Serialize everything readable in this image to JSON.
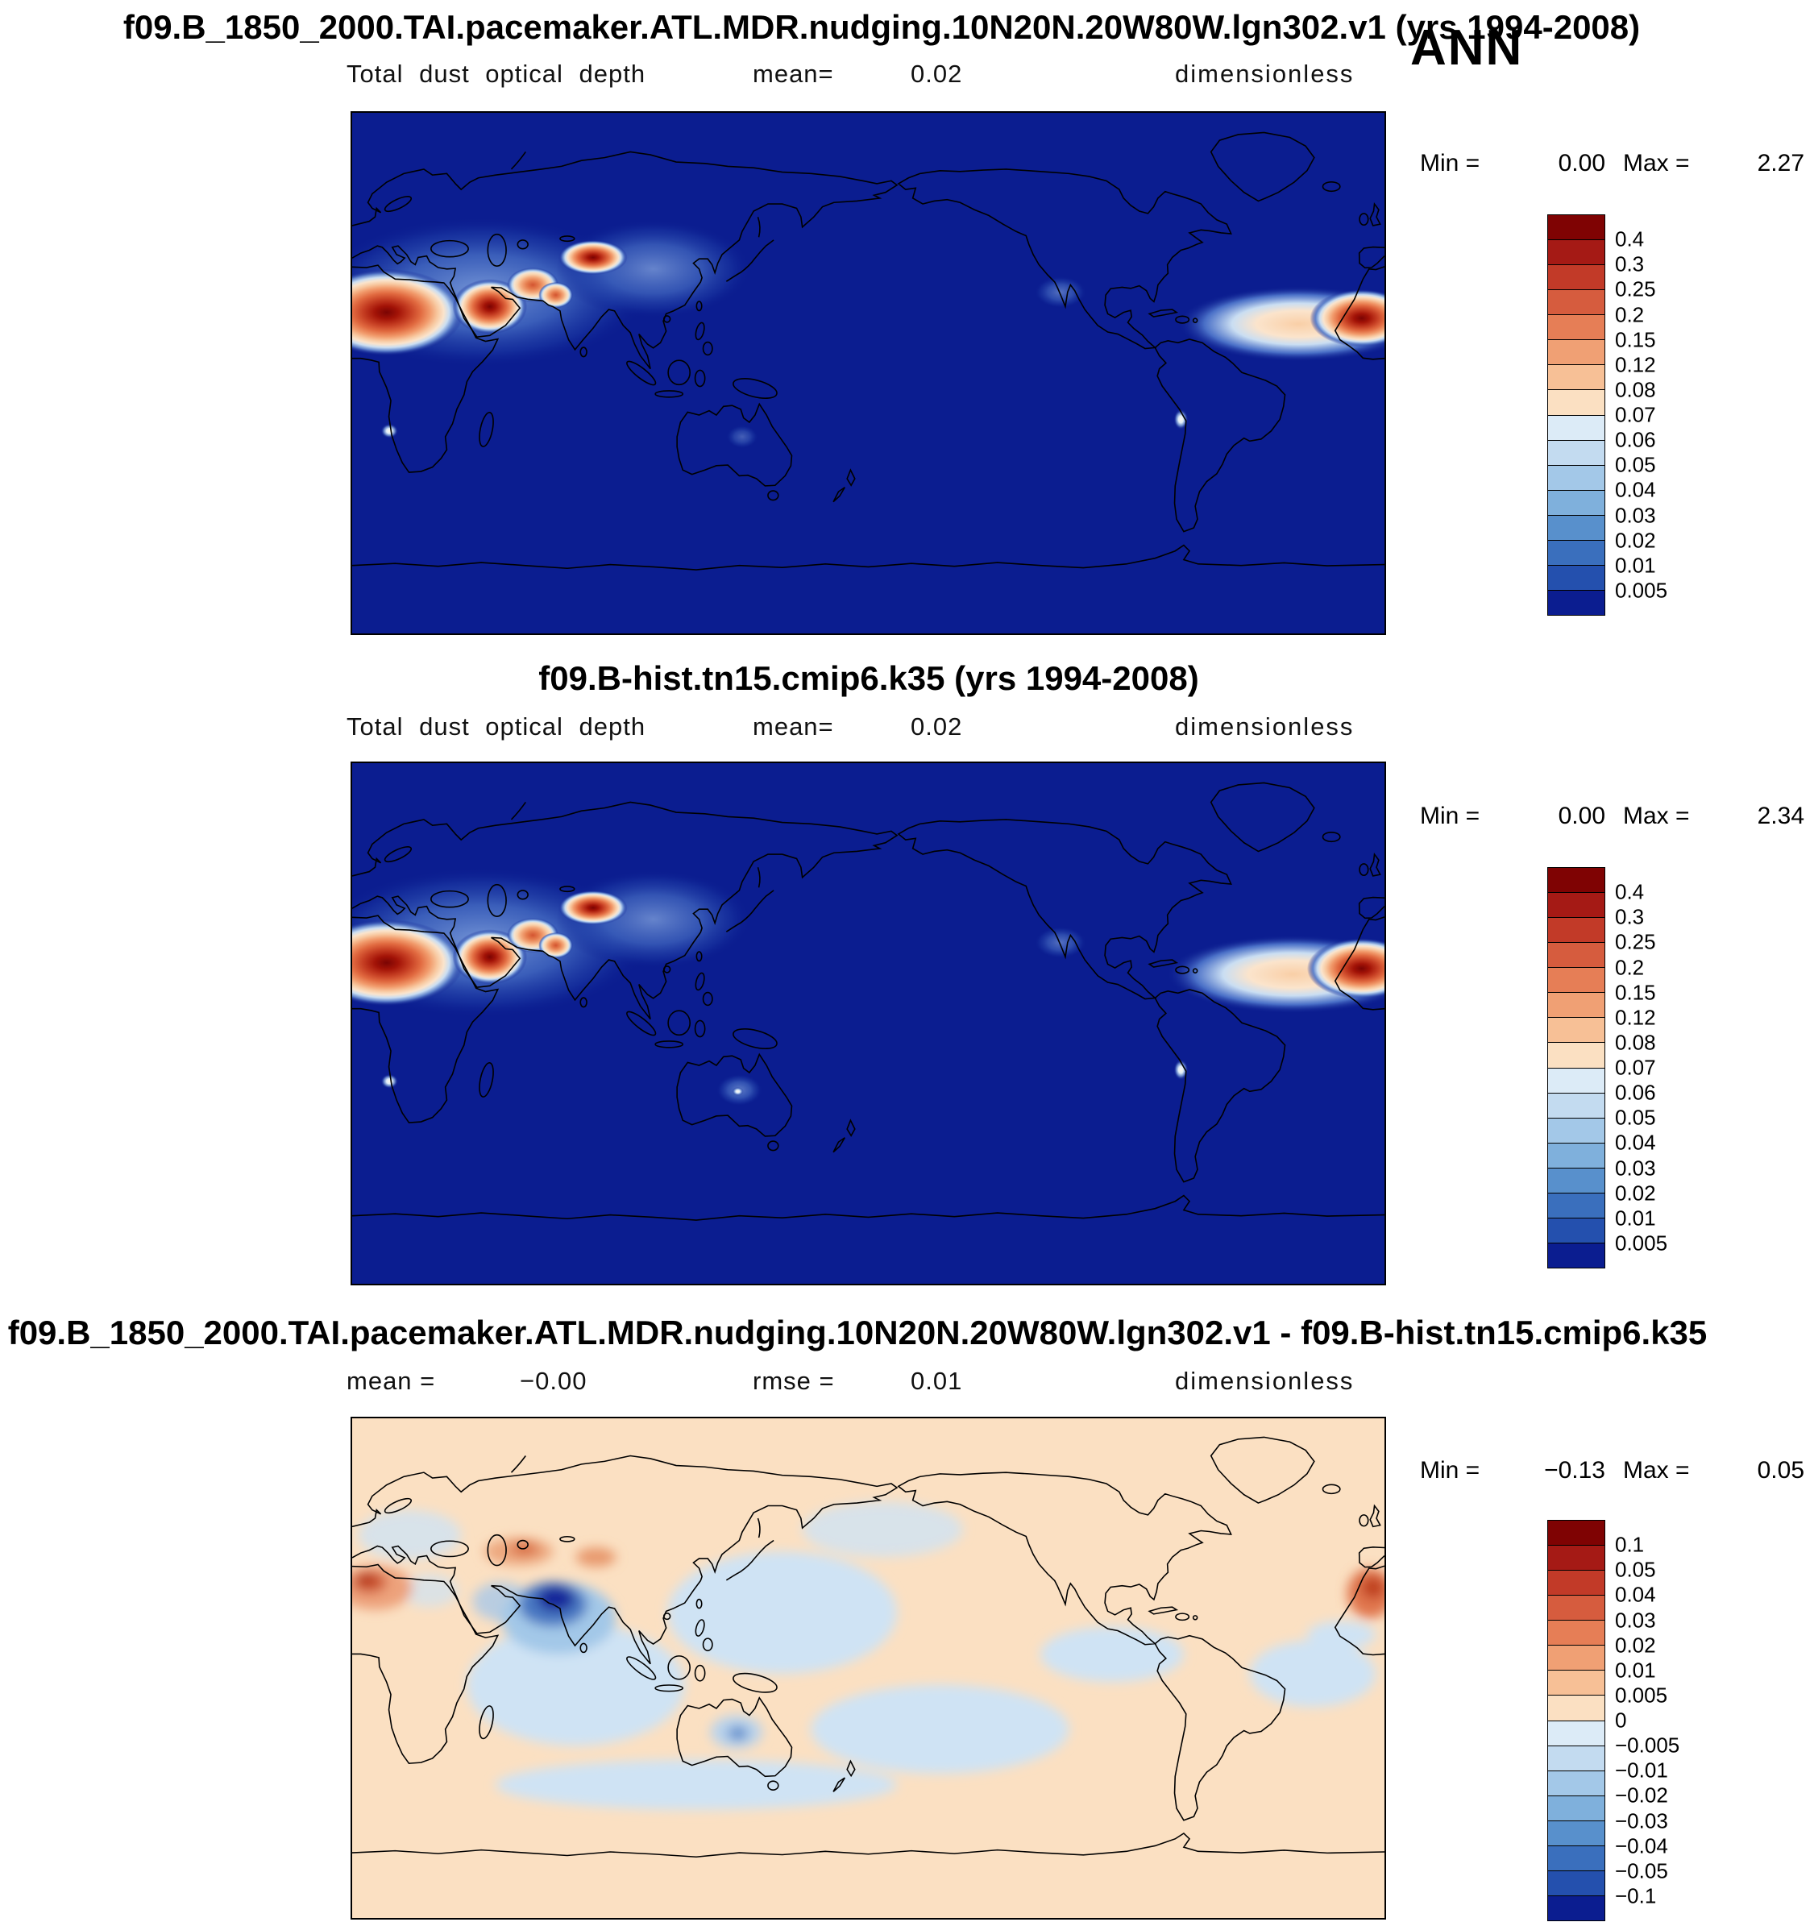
{
  "season_label": "ANN",
  "colors": {
    "dust_map_background": "#0b1d90",
    "diff_map_background": "#fbe0c2",
    "coastline": "#000000"
  },
  "panels": [
    {
      "title": "f09.B_1850_2000.TAI.pacemaker.ATL.MDR.nudging.10N20N.20W80W.lgn302.v1 (yrs 1994-2008)",
      "field_label": "Total dust optical depth",
      "mean_label": "mean=",
      "mean_value": "0.02",
      "units": "dimensionless",
      "min_label": "Min =",
      "min_value": "0.00",
      "max_label": "Max =",
      "max_value": "2.27",
      "colorbar": {
        "labels": [
          "0.4",
          "0.3",
          "0.25",
          "0.2",
          "0.15",
          "0.12",
          "0.08",
          "0.07",
          "0.06",
          "0.05",
          "0.04",
          "0.03",
          "0.02",
          "0.01",
          "0.005"
        ],
        "colors": [
          "#7f0303",
          "#a51a15",
          "#c23a28",
          "#d65c3e",
          "#e67e56",
          "#f0a074",
          "#f7c096",
          "#fbe0c2",
          "#dcebf7",
          "#c3dbf0",
          "#a3c8e8",
          "#7fb0dc",
          "#5890cc",
          "#3a6fbd",
          "#2450ae",
          "#0b1d90"
        ]
      }
    },
    {
      "title": "f09.B-hist.tn15.cmip6.k35 (yrs 1994-2008)",
      "field_label": "Total dust optical depth",
      "mean_label": "mean=",
      "mean_value": "0.02",
      "units": "dimensionless",
      "min_label": "Min =",
      "min_value": "0.00",
      "max_label": "Max =",
      "max_value": "2.34",
      "colorbar": {
        "labels": [
          "0.4",
          "0.3",
          "0.25",
          "0.2",
          "0.15",
          "0.12",
          "0.08",
          "0.07",
          "0.06",
          "0.05",
          "0.04",
          "0.03",
          "0.02",
          "0.01",
          "0.005"
        ],
        "colors": [
          "#7f0303",
          "#a51a15",
          "#c23a28",
          "#d65c3e",
          "#e67e56",
          "#f0a074",
          "#f7c096",
          "#fbe0c2",
          "#dcebf7",
          "#c3dbf0",
          "#a3c8e8",
          "#7fb0dc",
          "#5890cc",
          "#3a6fbd",
          "#2450ae",
          "#0b1d90"
        ]
      }
    },
    {
      "title": "f09.B_1850_2000.TAI.pacemaker.ATL.MDR.nudging.10N20N.20W80W.lgn302.v1 - f09.B-hist.tn15.cmip6.k35",
      "mean_label": "mean =",
      "mean_value": "−0.00",
      "rmse_label": "rmse =",
      "rmse_value": "0.01",
      "units": "dimensionless",
      "min_label": "Min =",
      "min_value": "−0.13",
      "max_label": "Max =",
      "max_value": "0.05",
      "colorbar": {
        "labels": [
          "0.1",
          "0.05",
          "0.04",
          "0.03",
          "0.02",
          "0.01",
          "0.005",
          "0",
          "−0.005",
          "−0.01",
          "−0.02",
          "−0.03",
          "−0.04",
          "−0.05",
          "−0.1"
        ],
        "colors": [
          "#7f0303",
          "#a51a15",
          "#c23a28",
          "#d65c3e",
          "#e67e56",
          "#f0a074",
          "#f7c096",
          "#fbe0c2",
          "#dcebf7",
          "#c3dbf0",
          "#a3c8e8",
          "#7fb0dc",
          "#5890cc",
          "#3a6fbd",
          "#2450ae",
          "#0b1d90"
        ]
      }
    }
  ],
  "chart_data": [
    {
      "type": "heatmap",
      "subtype": "global lat-lon filled-contour map, Pacific-centered (0-360E)",
      "title": "f09.B_1850_2000.TAI.pacemaker.ATL.MDR.nudging.10N20N.20W80W.lgn302.v1 (yrs 1994-2008)",
      "variable": "Total dust optical depth",
      "units": "dimensionless",
      "season": "ANN",
      "mean": 0.02,
      "min": 0.0,
      "max": 2.27,
      "contour_levels": [
        0.005,
        0.01,
        0.02,
        0.03,
        0.04,
        0.05,
        0.06,
        0.07,
        0.08,
        0.12,
        0.15,
        0.2,
        0.25,
        0.3,
        0.4
      ],
      "high_value_regions": [
        "Sahara / North Africa",
        "Arabian Peninsula",
        "Southwest Asia",
        "Thar desert",
        "Taklamakan-Gobi",
        "Saharan dust outflow plume over tropical North Atlantic"
      ],
      "background_value": "< 0.005 (dark navy) over most oceans"
    },
    {
      "type": "heatmap",
      "subtype": "global lat-lon filled-contour map, Pacific-centered (0-360E)",
      "title": "f09.B-hist.tn15.cmip6.k35 (yrs 1994-2008)",
      "variable": "Total dust optical depth",
      "units": "dimensionless",
      "season": "ANN",
      "mean": 0.02,
      "min": 0.0,
      "max": 2.34,
      "contour_levels": [
        0.005,
        0.01,
        0.02,
        0.03,
        0.04,
        0.05,
        0.06,
        0.07,
        0.08,
        0.12,
        0.15,
        0.2,
        0.25,
        0.3,
        0.4
      ],
      "high_value_regions": [
        "Sahara / North Africa",
        "Arabian Peninsula",
        "Southwest Asia",
        "Taklamakan-Gobi",
        "Atlantic dust outflow",
        "weak maximum over central Australia"
      ],
      "background_value": "< 0.005 (dark navy) over most oceans"
    },
    {
      "type": "heatmap",
      "subtype": "difference map (case minus reference)",
      "title": "f09.B_1850_2000.TAI.pacemaker.ATL.MDR.nudging.10N20N.20W80W.lgn302.v1 - f09.B-hist.tn15.cmip6.k35",
      "variable": "Total dust optical depth difference",
      "units": "dimensionless",
      "mean": -0.0,
      "rmse": 0.01,
      "min": -0.13,
      "max": 0.05,
      "contour_levels": [
        -0.1,
        -0.05,
        -0.04,
        -0.03,
        -0.02,
        -0.01,
        -0.005,
        0,
        0.005,
        0.01,
        0.02,
        0.03,
        0.04,
        0.05,
        0.1
      ],
      "negative_regions": [
        "strong negative (dark blue) over Arabian Sea / Pakistan / NW India",
        "weak negative over Indian Ocean, Indo-Pacific, tropical oceans, Australia"
      ],
      "positive_regions": [
        "positive (red-orange) over NW Africa and West African coast",
        "Central Asia / Caspian region",
        "Tarim basin"
      ]
    }
  ]
}
